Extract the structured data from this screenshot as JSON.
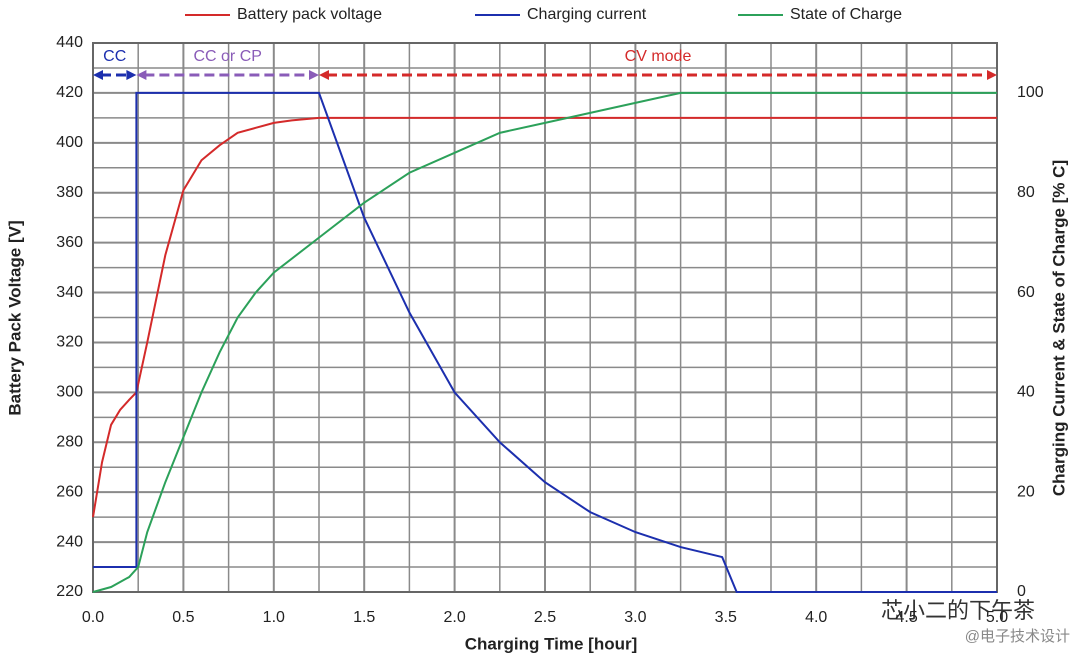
{
  "chart_data": {
    "type": "line",
    "xlabel": "Charging Time [hour]",
    "ylabel": "Battery Pack Voltage [V]",
    "y2label": "Charging Current & State of Charge [% C]",
    "xlim": [
      0,
      5
    ],
    "xticks": [
      {
        "value": 0,
        "label": "0.0"
      },
      0.5,
      {
        "value": 1,
        "label": "1.0"
      },
      1.5,
      {
        "value": 2,
        "label": "2.0"
      },
      2.5,
      {
        "value": 3,
        "label": "3.0"
      },
      3.5,
      {
        "value": 4,
        "label": "4.0"
      },
      4.5,
      {
        "value": 5,
        "label": "5.0"
      }
    ],
    "xminor": [
      0.25,
      0.75,
      1.25,
      1.75,
      2.25,
      2.75,
      3.25,
      3.75,
      4.25,
      4.75
    ],
    "ylim": [
      220,
      440
    ],
    "yticks": [
      220,
      240,
      260,
      280,
      300,
      320,
      340,
      360,
      380,
      400,
      420,
      440
    ],
    "yminor": [
      230,
      250,
      270,
      290,
      310,
      330,
      350,
      370,
      390,
      410,
      430
    ],
    "y2lim": [
      0,
      110
    ],
    "y2ticks": [
      0,
      20,
      40,
      60,
      80,
      100
    ],
    "grid": true,
    "series": [
      {
        "name": "Battery pack voltage",
        "color": "#d42a2a",
        "x": [
          0,
          0.05,
          0.1,
          0.15,
          0.2,
          0.24,
          0.3,
          0.4,
          0.5,
          0.6,
          0.7,
          0.8,
          0.9,
          1.0,
          1.1,
          1.25,
          1.5,
          5
        ],
        "values": [
          250,
          272,
          287,
          293,
          297,
          300,
          320,
          355,
          381,
          393,
          399,
          404,
          406,
          408,
          409,
          410,
          410,
          410
        ]
      },
      {
        "name": "Charging current",
        "color": "#1c2fae",
        "axis": "y2",
        "x": [
          0,
          0.24,
          0.24,
          1.25,
          1.5,
          1.75,
          2.0,
          2.25,
          2.5,
          2.75,
          3.0,
          3.25,
          3.48,
          3.56,
          5
        ],
        "values": [
          5,
          5,
          100,
          100,
          75,
          56,
          40,
          30,
          22,
          16,
          12,
          9,
          7,
          0,
          0
        ]
      },
      {
        "name": "State of Charge",
        "color": "#2ca15a",
        "axis": "y2",
        "x": [
          0,
          0.1,
          0.2,
          0.25,
          0.3,
          0.4,
          0.5,
          0.6,
          0.7,
          0.8,
          0.9,
          1.0,
          1.25,
          1.5,
          1.75,
          2.0,
          2.25,
          2.5,
          2.75,
          3.0,
          3.25,
          5
        ],
        "values": [
          0,
          1,
          3,
          5,
          12,
          22,
          31,
          40,
          48,
          55,
          60,
          64,
          71,
          78,
          84,
          88,
          92,
          94,
          96,
          98,
          100,
          100
        ]
      }
    ],
    "annotations": [
      {
        "text": "CC",
        "xrange": [
          0,
          0.24
        ],
        "color": "#1c2fae"
      },
      {
        "text": "CC or CP",
        "xrange": [
          0.24,
          1.25
        ],
        "color": "#8a5cb8"
      },
      {
        "text": "CV mode",
        "xrange": [
          1.25,
          5
        ],
        "color": "#d42a2a"
      }
    ]
  },
  "watermark": {
    "line1": "芯小二的下午茶",
    "line2": "@电子技术设计"
  }
}
